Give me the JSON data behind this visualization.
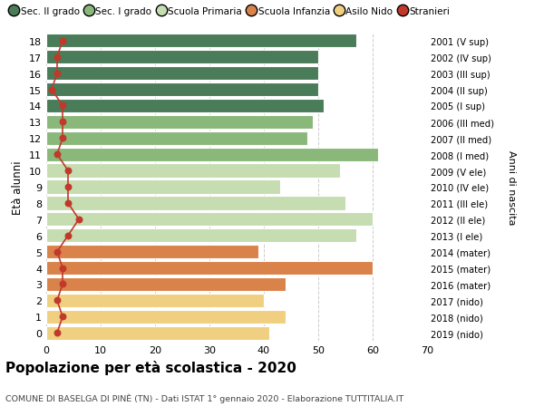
{
  "ages": [
    18,
    17,
    16,
    15,
    14,
    13,
    12,
    11,
    10,
    9,
    8,
    7,
    6,
    5,
    4,
    3,
    2,
    1,
    0
  ],
  "bar_values": [
    57,
    50,
    50,
    50,
    51,
    49,
    48,
    61,
    54,
    43,
    55,
    60,
    57,
    39,
    60,
    44,
    40,
    44,
    41
  ],
  "bar_colors": [
    "#4a7c59",
    "#4a7c59",
    "#4a7c59",
    "#4a7c59",
    "#4a7c59",
    "#8ab87a",
    "#8ab87a",
    "#8ab87a",
    "#c5ddb0",
    "#c5ddb0",
    "#c5ddb0",
    "#c5ddb0",
    "#c5ddb0",
    "#d9824a",
    "#d9824a",
    "#d9824a",
    "#f0d080",
    "#f0d080",
    "#f0d080"
  ],
  "stranieri": [
    3,
    2,
    2,
    1,
    3,
    3,
    3,
    2,
    4,
    4,
    4,
    6,
    4,
    2,
    3,
    3,
    2,
    3,
    2
  ],
  "right_labels": [
    "2001 (V sup)",
    "2002 (IV sup)",
    "2003 (III sup)",
    "2004 (II sup)",
    "2005 (I sup)",
    "2006 (III med)",
    "2007 (II med)",
    "2008 (I med)",
    "2009 (V ele)",
    "2010 (IV ele)",
    "2011 (III ele)",
    "2012 (II ele)",
    "2013 (I ele)",
    "2014 (mater)",
    "2015 (mater)",
    "2016 (mater)",
    "2017 (nido)",
    "2018 (nido)",
    "2019 (nido)"
  ],
  "legend_labels": [
    "Sec. II grado",
    "Sec. I grado",
    "Scuola Primaria",
    "Scuola Infanzia",
    "Asilo Nido",
    "Stranieri"
  ],
  "legend_colors": [
    "#4a7c59",
    "#8ab87a",
    "#c5ddb0",
    "#d9824a",
    "#f0d080",
    "#c0392b"
  ],
  "ylabel": "Età alunni",
  "right_ylabel": "Anni di nascita",
  "title": "Popolazione per età scolastica - 2020",
  "subtitle": "COMUNE DI BASELGA DI PINÈ (TN) - Dati ISTAT 1° gennaio 2020 - Elaborazione TUTTITALIA.IT",
  "xlim": [
    0,
    70
  ],
  "background_color": "#ffffff",
  "grid_color": "#cccccc",
  "bar_edgecolor": "#ffffff",
  "stranieri_color": "#c0392b"
}
